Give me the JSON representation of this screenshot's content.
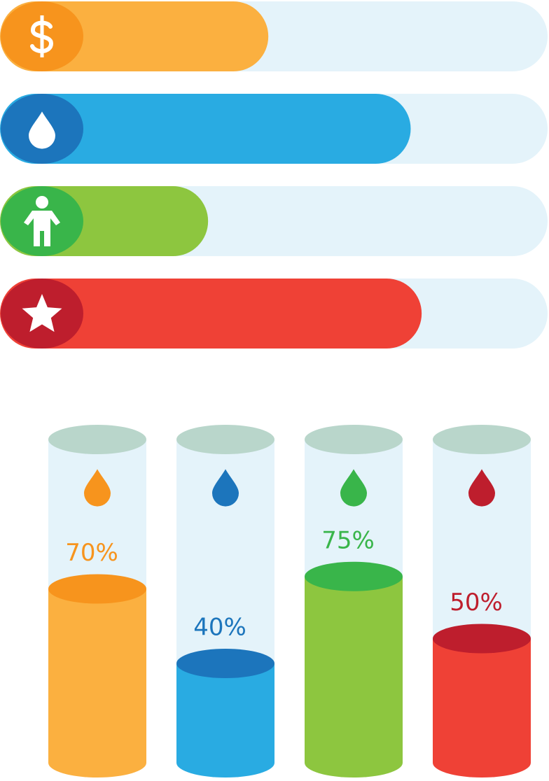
{
  "chart_data": [
    {
      "type": "progress",
      "series": [
        {
          "color": "#fbb040",
          "icon_color": "#f7941d",
          "values": [
            49
          ]
        },
        {
          "color": "#29abe2",
          "icon_color": "#1c75bc",
          "values": [
            75
          ]
        },
        {
          "color": "#8dc63f",
          "icon_color": "#39b54a",
          "values": [
            38
          ]
        },
        {
          "color": "#ef4136",
          "icon_color": "#be1e2d",
          "values": [
            77
          ]
        }
      ]
    },
    {
      "type": "cylinder",
      "series": [
        {
          "color": "#fbb040",
          "top_color": "#f7941d",
          "values": [
            70
          ],
          "value_labels": [
            "70%"
          ]
        },
        {
          "color": "#29abe2",
          "top_color": "#1c75bc",
          "values": [
            40
          ],
          "value_labels": [
            "40%"
          ]
        },
        {
          "color": "#8dc63f",
          "top_color": "#39b54a",
          "values": [
            75
          ],
          "value_labels": [
            "75%"
          ]
        },
        {
          "color": "#ef4136",
          "top_color": "#be1e2d",
          "values": [
            50
          ],
          "value_labels": [
            "50%"
          ]
        }
      ]
    }
  ]
}
